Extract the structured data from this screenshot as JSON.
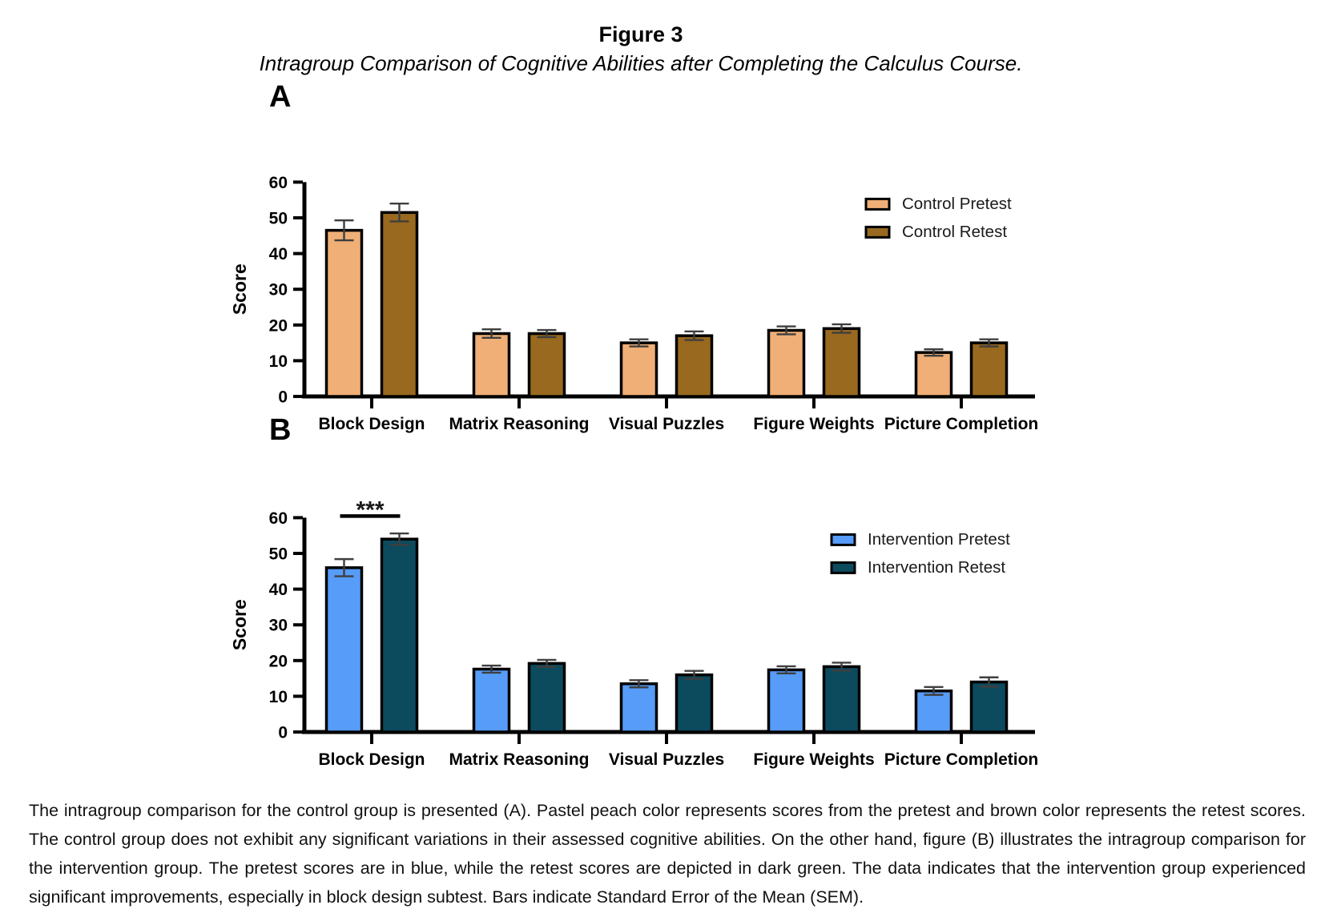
{
  "figure": {
    "label": "Figure 3",
    "title": "Intragroup Comparison of Cognitive Abilities after Completing the Calculus Course.",
    "caption": "The intragroup comparison for the control group is presented (A). Pastel peach color represents scores from the pretest and brown color represents the retest scores. The control group does not exhibit any significant variations in their assessed cognitive abilities. On the other hand, figure (B) illustrates the intragroup comparison for the intervention group. The pretest scores are in blue, while the retest scores are depicted in dark green. The data indicates that the intervention group experienced significant improvements, especially in block design subtest. Bars indicate Standard Error of the Mean (SEM)."
  },
  "chart_data": [
    {
      "type": "bar",
      "panel": "A",
      "ylabel": "Score",
      "xlabel": "",
      "ylim": [
        0,
        60
      ],
      "yticks": [
        0,
        10,
        20,
        30,
        40,
        50,
        60
      ],
      "grid": false,
      "legend_position": "top-right",
      "error_bars": "SEM",
      "error_color": "#3F3F3F",
      "categories": [
        "Block Design",
        "Matrix Reasoning",
        "Visual Puzzles",
        "Figure Weights",
        "Picture Completion"
      ],
      "series": [
        {
          "name": "Control Pretest",
          "color": "#F0AF76",
          "values": [
            46.5,
            17.6,
            15.0,
            18.5,
            12.3
          ],
          "sem": [
            2.8,
            1.2,
            1.0,
            1.1,
            0.9
          ]
        },
        {
          "name": "Control Retest",
          "color": "#98691E",
          "values": [
            51.5,
            17.6,
            17.0,
            19.0,
            15.0
          ],
          "sem": [
            2.5,
            1.0,
            1.2,
            1.2,
            1.0
          ]
        }
      ],
      "significance": []
    },
    {
      "type": "bar",
      "panel": "B",
      "ylabel": "Score",
      "xlabel": "",
      "ylim": [
        0,
        60
      ],
      "yticks": [
        0,
        10,
        20,
        30,
        40,
        50,
        60
      ],
      "grid": false,
      "legend_position": "top-right",
      "error_bars": "SEM",
      "error_color": "#3F3F3F",
      "categories": [
        "Block Design",
        "Matrix Reasoning",
        "Visual Puzzles",
        "Figure Weights",
        "Picture Completion"
      ],
      "series": [
        {
          "name": "Intervention Pretest",
          "color": "#569CF8",
          "values": [
            46.0,
            17.6,
            13.5,
            17.4,
            11.5
          ],
          "sem": [
            2.4,
            1.0,
            1.0,
            1.0,
            1.1
          ]
        },
        {
          "name": "Intervention Retest",
          "color": "#0C4A5E",
          "values": [
            54.0,
            19.2,
            16.0,
            18.3,
            14.0
          ],
          "sem": [
            1.6,
            1.0,
            1.1,
            1.1,
            1.3
          ]
        }
      ],
      "significance": [
        {
          "category": "Block Design",
          "between": [
            "Intervention Pretest",
            "Intervention Retest"
          ],
          "label": "***"
        }
      ]
    }
  ]
}
